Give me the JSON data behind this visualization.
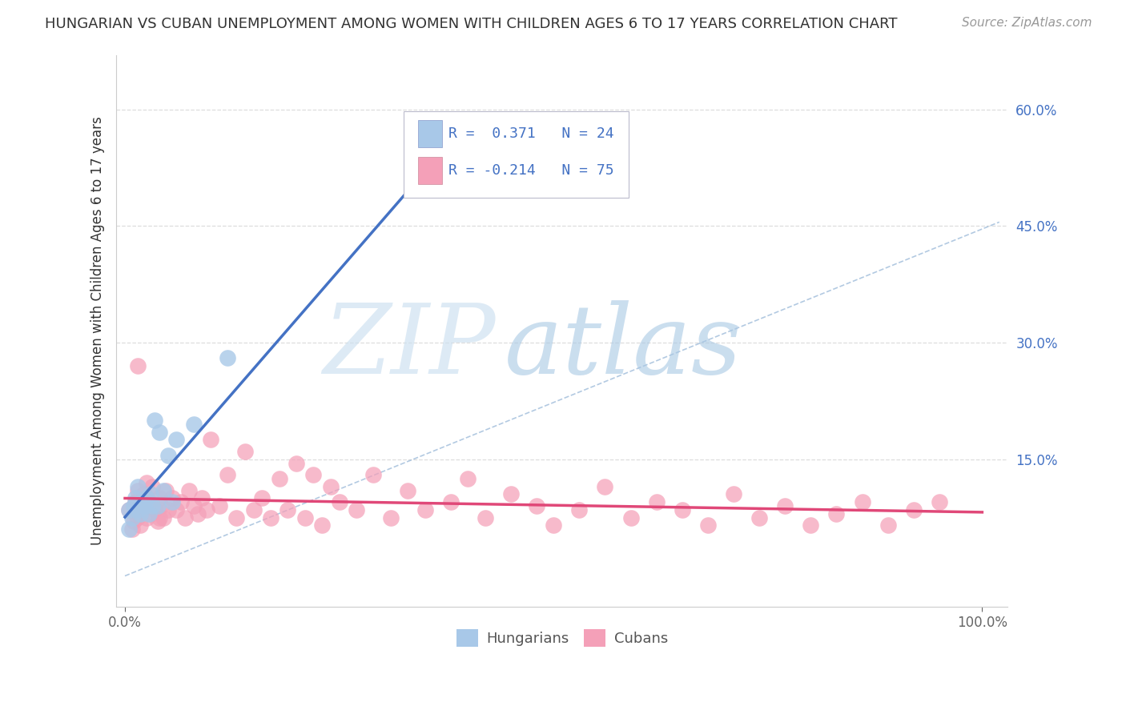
{
  "title": "HUNGARIAN VS CUBAN UNEMPLOYMENT AMONG WOMEN WITH CHILDREN AGES 6 TO 17 YEARS CORRELATION CHART",
  "source": "Source: ZipAtlas.com",
  "ylabel": "Unemployment Among Women with Children Ages 6 to 17 years",
  "xlim": [
    -0.01,
    1.03
  ],
  "ylim": [
    -0.04,
    0.67
  ],
  "xtick_positions": [
    0.0,
    1.0
  ],
  "xticklabels": [
    "0.0%",
    "100.0%"
  ],
  "ytick_positions": [
    0.15,
    0.3,
    0.45,
    0.6
  ],
  "ytick_labels": [
    "15.0%",
    "30.0%",
    "45.0%",
    "60.0%"
  ],
  "hungarian_color": "#a8c8e8",
  "cuban_color": "#f4a0b8",
  "hungarian_line_color": "#4472C4",
  "cuban_line_color": "#E04878",
  "grid_color": "#dddddd",
  "diagonal_color": "#99b8d8",
  "title_fontsize": 13,
  "source_fontsize": 11,
  "tick_fontsize": 12,
  "legend_fontsize": 13,
  "ylabel_fontsize": 12,
  "hungarian_x": [
    0.005,
    0.008,
    0.01,
    0.012,
    0.015,
    0.015,
    0.018,
    0.02,
    0.022,
    0.025,
    0.028,
    0.03,
    0.032,
    0.035,
    0.038,
    0.04,
    0.045,
    0.05,
    0.055,
    0.06,
    0.08,
    0.12,
    0.35,
    0.005
  ],
  "hungarian_y": [
    0.085,
    0.075,
    0.09,
    0.1,
    0.085,
    0.115,
    0.08,
    0.095,
    0.09,
    0.1,
    0.08,
    0.105,
    0.09,
    0.2,
    0.09,
    0.185,
    0.11,
    0.155,
    0.095,
    0.175,
    0.195,
    0.28,
    0.5,
    0.06
  ],
  "cuban_x": [
    0.005,
    0.008,
    0.01,
    0.012,
    0.014,
    0.015,
    0.016,
    0.018,
    0.02,
    0.022,
    0.025,
    0.028,
    0.03,
    0.032,
    0.035,
    0.038,
    0.04,
    0.042,
    0.045,
    0.048,
    0.05,
    0.055,
    0.06,
    0.065,
    0.07,
    0.075,
    0.08,
    0.085,
    0.09,
    0.095,
    0.1,
    0.11,
    0.12,
    0.13,
    0.14,
    0.15,
    0.16,
    0.17,
    0.18,
    0.19,
    0.2,
    0.21,
    0.22,
    0.23,
    0.24,
    0.25,
    0.27,
    0.29,
    0.31,
    0.33,
    0.35,
    0.38,
    0.4,
    0.42,
    0.45,
    0.48,
    0.5,
    0.53,
    0.56,
    0.59,
    0.62,
    0.65,
    0.68,
    0.71,
    0.74,
    0.77,
    0.8,
    0.83,
    0.86,
    0.89,
    0.92,
    0.95,
    0.015,
    0.025,
    0.04
  ],
  "cuban_y": [
    0.085,
    0.06,
    0.07,
    0.095,
    0.075,
    0.11,
    0.08,
    0.065,
    0.09,
    0.105,
    0.075,
    0.095,
    0.08,
    0.115,
    0.085,
    0.07,
    0.1,
    0.09,
    0.075,
    0.11,
    0.085,
    0.1,
    0.085,
    0.095,
    0.075,
    0.11,
    0.09,
    0.08,
    0.1,
    0.085,
    0.175,
    0.09,
    0.13,
    0.075,
    0.16,
    0.085,
    0.1,
    0.075,
    0.125,
    0.085,
    0.145,
    0.075,
    0.13,
    0.065,
    0.115,
    0.095,
    0.085,
    0.13,
    0.075,
    0.11,
    0.085,
    0.095,
    0.125,
    0.075,
    0.105,
    0.09,
    0.065,
    0.085,
    0.115,
    0.075,
    0.095,
    0.085,
    0.065,
    0.105,
    0.075,
    0.09,
    0.065,
    0.08,
    0.095,
    0.065,
    0.085,
    0.095,
    0.27,
    0.12,
    0.075
  ]
}
